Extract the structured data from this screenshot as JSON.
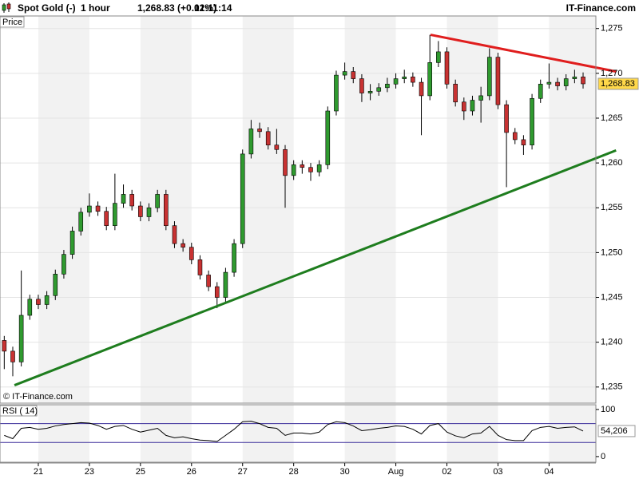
{
  "header": {
    "instrument": "Spot Gold (-)",
    "interval": "1 hour",
    "quote": "1,268.83 (+0.01%)",
    "time": "12:11:14",
    "brand": "IT-Finance.com"
  },
  "chart_data": [
    {
      "type": "candlestick",
      "panel_label": "Price",
      "watermark": "© IT-Finance.com",
      "x": [
        2,
        6,
        10,
        14,
        18,
        22,
        26,
        30,
        34,
        38,
        42,
        46,
        50,
        54,
        58,
        62,
        66,
        70,
        74,
        78,
        82,
        86,
        90,
        94,
        98,
        102,
        106,
        110,
        114,
        118,
        122,
        126,
        130,
        134,
        138,
        142,
        146,
        150,
        154,
        158,
        162,
        166,
        170,
        174,
        178,
        182,
        186,
        190,
        194,
        198,
        202,
        206,
        210,
        214,
        218,
        222,
        226,
        230,
        234,
        238,
        242,
        246,
        250,
        254,
        258,
        262,
        266,
        270,
        274
      ],
      "open": [
        1240.2,
        1239.0,
        1237.8,
        1243.0,
        1244.8,
        1244.2,
        1245.2,
        1247.6,
        1249.8,
        1252.4,
        1254.5,
        1255.2,
        1254.6,
        1253.0,
        1255.5,
        1256.5,
        1255.2,
        1254.0,
        1255.0,
        1256.5,
        1253.0,
        1251.0,
        1250.6,
        1249.2,
        1247.5,
        1246.2,
        1245.0,
        1247.8,
        1251.0,
        1261.0,
        1263.8,
        1263.5,
        1262.0,
        1261.5,
        1258.6,
        1259.8,
        1259.5,
        1259.0,
        1259.8,
        1265.8,
        1269.8,
        1270.2,
        1269.4,
        1267.8,
        1268.0,
        1268.4,
        1268.8,
        1269.4,
        1269.6,
        1269.0,
        1267.5,
        1271.2,
        1272.4,
        1268.8,
        1266.8,
        1265.8,
        1267.0,
        1267.5,
        1271.8,
        1266.5,
        1263.4,
        1262.6,
        1262.0,
        1267.2,
        1268.8,
        1269.0,
        1268.6,
        1269.4,
        1269.6
      ],
      "high": [
        1240.7,
        1239.5,
        1248.0,
        1245.3,
        1245.3,
        1245.7,
        1248.1,
        1250.3,
        1252.9,
        1255.0,
        1256.6,
        1255.7,
        1255.1,
        1258.8,
        1257.6,
        1257.0,
        1255.7,
        1255.5,
        1257.0,
        1257.0,
        1253.5,
        1251.5,
        1251.1,
        1249.7,
        1248.0,
        1246.7,
        1248.3,
        1251.5,
        1261.5,
        1264.8,
        1264.5,
        1264.0,
        1263.8,
        1262.0,
        1260.3,
        1260.3,
        1260.0,
        1260.3,
        1266.3,
        1270.3,
        1271.2,
        1270.7,
        1269.9,
        1268.8,
        1268.9,
        1269.5,
        1270.0,
        1270.4,
        1270.1,
        1269.5,
        1274.3,
        1273.6,
        1272.9,
        1269.3,
        1267.3,
        1267.5,
        1268.5,
        1272.8,
        1272.3,
        1267.0,
        1263.9,
        1263.1,
        1267.7,
        1269.3,
        1271.1,
        1269.5,
        1269.9,
        1270.4,
        1270.1
      ],
      "low": [
        1237.0,
        1236.2,
        1237.3,
        1242.5,
        1243.7,
        1243.7,
        1244.7,
        1247.1,
        1249.3,
        1251.9,
        1254.0,
        1254.1,
        1252.5,
        1252.5,
        1255.0,
        1254.7,
        1253.5,
        1253.5,
        1254.5,
        1252.5,
        1250.5,
        1250.1,
        1248.7,
        1247.0,
        1245.7,
        1243.8,
        1244.5,
        1247.3,
        1250.5,
        1260.5,
        1262.8,
        1261.5,
        1261.0,
        1255.0,
        1258.1,
        1258.8,
        1258.0,
        1258.5,
        1259.3,
        1265.3,
        1269.3,
        1268.9,
        1266.8,
        1267.0,
        1267.5,
        1267.9,
        1268.3,
        1268.9,
        1268.5,
        1263.1,
        1267.0,
        1270.7,
        1268.3,
        1266.3,
        1264.8,
        1265.3,
        1264.5,
        1267.0,
        1266.0,
        1257.3,
        1262.1,
        1260.9,
        1261.5,
        1266.7,
        1268.3,
        1268.1,
        1268.1,
        1268.9,
        1268.3
      ],
      "close": [
        1239.0,
        1237.8,
        1243.0,
        1244.8,
        1244.2,
        1245.2,
        1247.6,
        1249.8,
        1252.4,
        1254.5,
        1255.2,
        1254.6,
        1253.0,
        1255.5,
        1256.5,
        1255.2,
        1254.0,
        1255.0,
        1256.5,
        1253.0,
        1251.0,
        1250.6,
        1249.2,
        1247.5,
        1246.2,
        1245.0,
        1247.8,
        1251.0,
        1261.0,
        1263.8,
        1263.5,
        1262.0,
        1261.5,
        1258.6,
        1259.8,
        1259.5,
        1259.0,
        1259.8,
        1265.8,
        1269.8,
        1270.2,
        1269.4,
        1267.8,
        1268.0,
        1268.4,
        1268.8,
        1269.4,
        1269.6,
        1269.0,
        1267.5,
        1271.2,
        1272.4,
        1268.8,
        1266.8,
        1265.8,
        1267.0,
        1267.5,
        1271.8,
        1266.5,
        1263.4,
        1262.6,
        1262.0,
        1267.2,
        1268.8,
        1269.0,
        1268.6,
        1269.4,
        1269.6,
        1268.83
      ],
      "up_color": "#2f9a2f",
      "down_color": "#c83232",
      "last_label": "1,268.83",
      "last_label_color": "#ffd84a",
      "xlim": [
        0,
        280
      ],
      "ylim": [
        1233.2,
        1276.4
      ],
      "yticks": [
        {
          "value": 1235,
          "label": "1,235"
        },
        {
          "value": 1240,
          "label": "1,240"
        },
        {
          "value": 1245,
          "label": "1,245"
        },
        {
          "value": 1250,
          "label": "1,250"
        },
        {
          "value": 1255,
          "label": "1,255"
        },
        {
          "value": 1260,
          "label": "1,260"
        },
        {
          "value": 1265,
          "label": "1,265"
        },
        {
          "value": 1270,
          "label": "1,270"
        },
        {
          "value": 1275,
          "label": "1,275"
        }
      ],
      "xticks": [
        {
          "value": 18,
          "label": "21"
        },
        {
          "value": 42,
          "label": "23"
        },
        {
          "value": 66,
          "label": "25"
        },
        {
          "value": 90,
          "label": "26"
        },
        {
          "value": 114,
          "label": "27"
        },
        {
          "value": 138,
          "label": "28"
        },
        {
          "value": 162,
          "label": "30"
        },
        {
          "value": 186,
          "label": "Aug"
        },
        {
          "value": 210,
          "label": "02"
        },
        {
          "value": 234,
          "label": "03"
        },
        {
          "value": 258,
          "label": "04"
        }
      ],
      "grid": true,
      "trendlines": [
        {
          "color": "#1e7d1e",
          "x": [
            6.8,
            289.5
          ],
          "y": [
            1235.2,
            1261.4
          ]
        },
        {
          "color": "#e01e1e",
          "x": [
            202.3,
            289.5
          ],
          "y": [
            1274.3,
            1270.2
          ]
        }
      ]
    },
    {
      "type": "line",
      "panel_label": "RSI ( 14)",
      "color": "#000000",
      "values": [
        45,
        38,
        60,
        62,
        58,
        60,
        65,
        68,
        70,
        72,
        71,
        66,
        58,
        64,
        66,
        58,
        52,
        56,
        60,
        45,
        40,
        42,
        38,
        35,
        34,
        32,
        45,
        58,
        74,
        75,
        70,
        62,
        60,
        45,
        50,
        50,
        48,
        52,
        68,
        74,
        72,
        65,
        55,
        57,
        60,
        62,
        65,
        64,
        58,
        48,
        66,
        70,
        52,
        44,
        40,
        48,
        50,
        64,
        45,
        36,
        34,
        34,
        55,
        62,
        64,
        60,
        62,
        63,
        54.206
      ],
      "last_label": "54,206",
      "ylim": [
        -12,
        110
      ],
      "yticks": [
        0,
        100
      ],
      "levels": [
        30,
        70
      ],
      "level_color": "#3a2c9a"
    }
  ]
}
